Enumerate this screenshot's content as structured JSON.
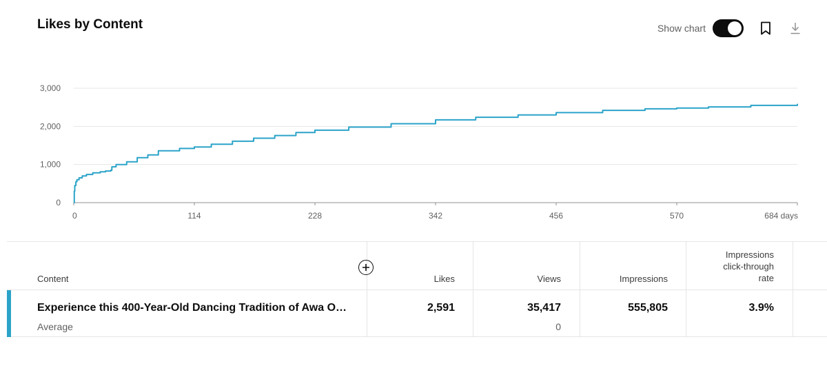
{
  "card": {
    "title": "Likes by Content"
  },
  "toolbar": {
    "show_chart_label": "Show chart",
    "show_chart_on": true,
    "bookmark_icon": "bookmark-icon",
    "download_icon": "download-icon"
  },
  "chart_data": {
    "type": "line",
    "x_unit": "days",
    "x_ticks": [
      "0",
      "114",
      "228",
      "342",
      "456",
      "570",
      "684 days"
    ],
    "y_ticks": [
      "0",
      "1,000",
      "2,000",
      "3,000"
    ],
    "xlim": [
      0,
      684
    ],
    "ylim": [
      0,
      3000
    ],
    "grid": true,
    "color": "#2ba3c9",
    "series": [
      {
        "x": [
          0,
          0.5,
          1,
          2,
          3,
          5,
          8,
          12,
          18,
          25,
          30,
          35,
          36,
          40,
          50,
          60,
          70,
          80,
          100,
          114,
          130,
          150,
          170,
          190,
          210,
          228,
          260,
          300,
          342,
          380,
          420,
          456,
          500,
          540,
          570,
          600,
          640,
          684
        ],
        "y": [
          0,
          300,
          450,
          550,
          600,
          650,
          700,
          740,
          780,
          810,
          830,
          850,
          940,
          1000,
          1070,
          1180,
          1250,
          1360,
          1420,
          1460,
          1530,
          1610,
          1690,
          1760,
          1840,
          1900,
          1980,
          2070,
          2170,
          2240,
          2300,
          2360,
          2420,
          2460,
          2480,
          2510,
          2550,
          2591
        ]
      }
    ]
  },
  "table": {
    "headers": {
      "content": "Content",
      "likes": "Likes",
      "views": "Views",
      "impressions": "Impressions",
      "ctr": [
        "Impressions",
        "click-through",
        "rate"
      ]
    },
    "add_column_icon": "add-circle-icon",
    "row": {
      "title": "Experience this 400-Year-Old Dancing Tradition of Awa O…",
      "likes": "2,591",
      "views": "35,417",
      "impressions": "555,805",
      "ctr": "3.9%"
    },
    "average": {
      "label": "Average",
      "views": "0"
    }
  }
}
